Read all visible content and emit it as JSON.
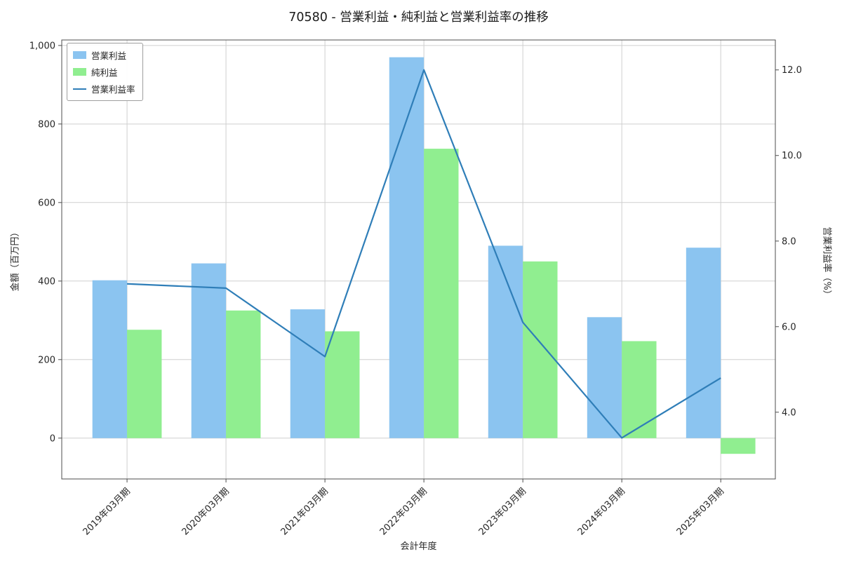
{
  "chart_data": {
    "type": "bar",
    "subtype": "grouped-bars-with-line",
    "title": "70580 - 営業利益・純利益と営業利益率の推移",
    "xlabel": "会計年度",
    "ylabel_left": "金額（百万円）",
    "ylabel_right": "営業利益率（%）",
    "categories": [
      "2019年03月期",
      "2020年03月期",
      "2021年03月期",
      "2022年03月期",
      "2023年03月期",
      "2024年03月期",
      "2025年03月期"
    ],
    "series": [
      {
        "name": "営業利益",
        "type": "bar",
        "axis": "left",
        "color": "#8bc4f0",
        "values": [
          402,
          445,
          328,
          970,
          490,
          308,
          485
        ]
      },
      {
        "name": "純利益",
        "type": "bar",
        "axis": "left",
        "color": "#90ee90",
        "values": [
          276,
          325,
          272,
          737,
          450,
          247,
          -40
        ]
      },
      {
        "name": "営業利益率",
        "type": "line",
        "axis": "right",
        "color": "#2f7eb8",
        "values": [
          7.0,
          6.9,
          5.3,
          12.0,
          6.1,
          3.4,
          4.8
        ]
      }
    ],
    "left_axis": {
      "ticks": [
        "0",
        "200",
        "400",
        "600",
        "800",
        "1,000"
      ],
      "tick_values": [
        0,
        200,
        400,
        600,
        800,
        1000
      ],
      "ylim": [
        -104,
        1014
      ]
    },
    "right_axis": {
      "ticks": [
        "4.0",
        "6.0",
        "8.0",
        "10.0",
        "12.0"
      ],
      "tick_values": [
        4,
        6,
        8,
        10,
        12
      ],
      "ylim": [
        2.44,
        12.7
      ]
    },
    "grid": true,
    "legend": {
      "position": "upper-left",
      "entries": [
        "営業利益",
        "純利益",
        "営業利益率"
      ]
    },
    "colors": {
      "grid": "#cfcfcf",
      "frame": "#4d4d4d",
      "text": "#262626"
    }
  }
}
